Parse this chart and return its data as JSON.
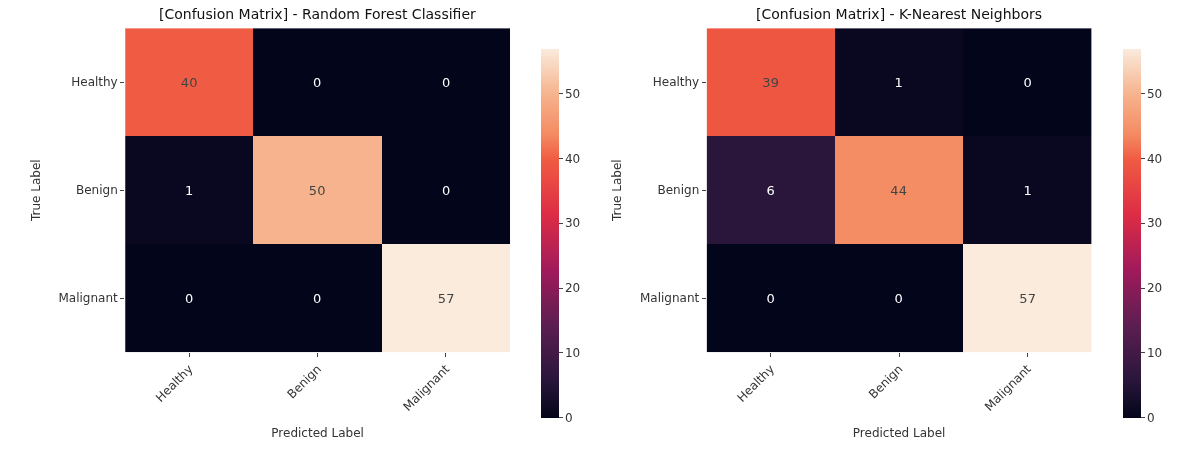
{
  "chart_data": [
    {
      "type": "heatmap",
      "title": "[Confusion Matrix] - Random Forest Classifier",
      "xlabel": "Predicted Label",
      "ylabel": "True Label",
      "categories": [
        "Healthy",
        "Benign",
        "Malignant"
      ],
      "y_categories": [
        "Healthy",
        "Benign",
        "Malignant"
      ],
      "cells": [
        [
          40,
          0,
          0
        ],
        [
          1,
          50,
          0
        ],
        [
          0,
          0,
          57
        ]
      ],
      "clim": [
        0,
        57
      ],
      "cticks": [
        0,
        10,
        20,
        30,
        40,
        50
      ],
      "data_labels": true
    },
    {
      "type": "heatmap",
      "title": "[Confusion Matrix] - K-Nearest Neighbors",
      "xlabel": "Predicted Label",
      "ylabel": "True Label",
      "categories": [
        "Healthy",
        "Benign",
        "Malignant"
      ],
      "y_categories": [
        "Healthy",
        "Benign",
        "Malignant"
      ],
      "cells": [
        [
          39,
          1,
          0
        ],
        [
          6,
          44,
          1
        ],
        [
          0,
          0,
          57
        ]
      ],
      "clim": [
        0,
        57
      ],
      "cticks": [
        0,
        10,
        20,
        30,
        40,
        50
      ],
      "data_labels": true
    }
  ]
}
